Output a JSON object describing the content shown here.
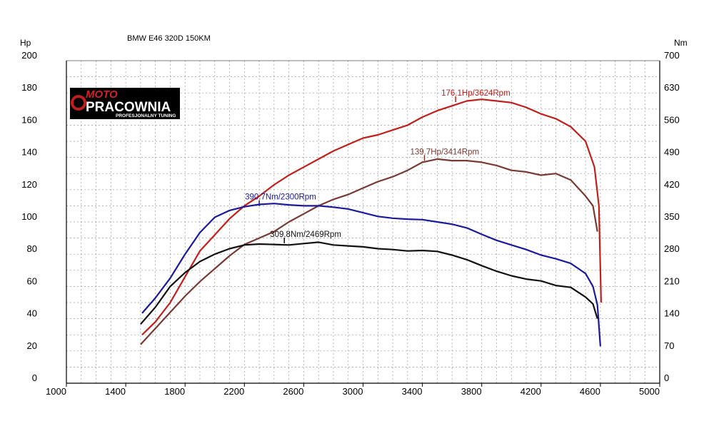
{
  "chart_data": {
    "type": "line",
    "title": "BMW E46 320D 150KM",
    "ylabel_left": "Hp",
    "ylabel_right": "Nm",
    "xlim": [
      1000,
      5000
    ],
    "ylim_left": [
      0,
      200
    ],
    "ylim_right": [
      0,
      700
    ],
    "x_ticks": [
      1000,
      1400,
      1800,
      2200,
      2600,
      3000,
      3400,
      3800,
      4200,
      4600,
      5000
    ],
    "y_ticks_left": [
      0,
      20,
      40,
      60,
      80,
      100,
      120,
      140,
      160,
      180,
      200
    ],
    "y_ticks_right": [
      0,
      70,
      140,
      210,
      280,
      350,
      420,
      490,
      560,
      630,
      700
    ],
    "grid": true,
    "logo": {
      "line1": "MOTO",
      "line2": "PRACOWNIA",
      "line3": "PROFESJONALNY TUNING"
    },
    "series": [
      {
        "color": "#c0201c",
        "axis": "left",
        "points": [
          [
            1510,
            30
          ],
          [
            1600,
            38
          ],
          [
            1700,
            50
          ],
          [
            1800,
            66
          ],
          [
            1900,
            82
          ],
          [
            2000,
            92
          ],
          [
            2100,
            102
          ],
          [
            2200,
            110
          ],
          [
            2300,
            116
          ],
          [
            2400,
            123
          ],
          [
            2500,
            129
          ],
          [
            2600,
            134
          ],
          [
            2700,
            139
          ],
          [
            2800,
            144
          ],
          [
            2900,
            148
          ],
          [
            3000,
            152
          ],
          [
            3100,
            154
          ],
          [
            3200,
            157
          ],
          [
            3300,
            160
          ],
          [
            3400,
            165
          ],
          [
            3500,
            169
          ],
          [
            3600,
            172
          ],
          [
            3700,
            175
          ],
          [
            3800,
            176
          ],
          [
            3900,
            175
          ],
          [
            4000,
            174
          ],
          [
            4100,
            171
          ],
          [
            4200,
            167
          ],
          [
            4300,
            164
          ],
          [
            4400,
            159
          ],
          [
            4500,
            150
          ],
          [
            4560,
            134
          ],
          [
            4590,
            110
          ],
          [
            4600,
            70
          ],
          [
            4605,
            50
          ]
        ],
        "annotation": {
          "text": "176.1Hp/3624Rpm",
          "x": 3624,
          "y": 176.1
        }
      },
      {
        "color": "#7a3a33",
        "axis": "left",
        "points": [
          [
            1500,
            24
          ],
          [
            1600,
            34
          ],
          [
            1700,
            44
          ],
          [
            1800,
            54
          ],
          [
            1900,
            63
          ],
          [
            2000,
            71
          ],
          [
            2100,
            79
          ],
          [
            2200,
            86
          ],
          [
            2300,
            90
          ],
          [
            2400,
            94
          ],
          [
            2500,
            100
          ],
          [
            2600,
            105
          ],
          [
            2700,
            110
          ],
          [
            2800,
            114
          ],
          [
            2900,
            117
          ],
          [
            3000,
            121
          ],
          [
            3100,
            125
          ],
          [
            3200,
            128
          ],
          [
            3300,
            132
          ],
          [
            3400,
            137
          ],
          [
            3500,
            139
          ],
          [
            3600,
            138
          ],
          [
            3700,
            138
          ],
          [
            3800,
            137
          ],
          [
            3900,
            135
          ],
          [
            4000,
            132
          ],
          [
            4100,
            131
          ],
          [
            4200,
            129
          ],
          [
            4300,
            130
          ],
          [
            4400,
            126
          ],
          [
            4500,
            116
          ],
          [
            4550,
            110
          ],
          [
            4580,
            94
          ]
        ],
        "annotation": {
          "text": "139.7Hp/3414Rpm",
          "x": 3414,
          "y": 139.7
        }
      },
      {
        "color": "#1a1a9a",
        "axis": "right",
        "points": [
          [
            1510,
            152
          ],
          [
            1600,
            185
          ],
          [
            1700,
            228
          ],
          [
            1800,
            280
          ],
          [
            1900,
            327
          ],
          [
            2000,
            360
          ],
          [
            2100,
            375
          ],
          [
            2200,
            383
          ],
          [
            2300,
            388
          ],
          [
            2400,
            390
          ],
          [
            2500,
            387
          ],
          [
            2600,
            385
          ],
          [
            2700,
            385
          ],
          [
            2800,
            382
          ],
          [
            2900,
            378
          ],
          [
            3000,
            370
          ],
          [
            3100,
            362
          ],
          [
            3200,
            358
          ],
          [
            3300,
            356
          ],
          [
            3400,
            355
          ],
          [
            3500,
            350
          ],
          [
            3600,
            345
          ],
          [
            3700,
            337
          ],
          [
            3800,
            323
          ],
          [
            3900,
            310
          ],
          [
            4000,
            300
          ],
          [
            4100,
            290
          ],
          [
            4200,
            278
          ],
          [
            4300,
            270
          ],
          [
            4400,
            260
          ],
          [
            4500,
            238
          ],
          [
            4550,
            210
          ],
          [
            4580,
            170
          ],
          [
            4600,
            80
          ]
        ],
        "annotation": {
          "text": "390.7Nm/2300Rpm",
          "x": 2300,
          "y": 390.7
        }
      },
      {
        "color": "#111111",
        "axis": "right",
        "points": [
          [
            1500,
            128
          ],
          [
            1600,
            165
          ],
          [
            1700,
            210
          ],
          [
            1800,
            240
          ],
          [
            1900,
            264
          ],
          [
            2000,
            280
          ],
          [
            2100,
            292
          ],
          [
            2200,
            300
          ],
          [
            2300,
            302
          ],
          [
            2400,
            301
          ],
          [
            2500,
            300
          ],
          [
            2600,
            303
          ],
          [
            2700,
            306
          ],
          [
            2800,
            300
          ],
          [
            2900,
            298
          ],
          [
            3000,
            296
          ],
          [
            3100,
            292
          ],
          [
            3200,
            290
          ],
          [
            3300,
            287
          ],
          [
            3400,
            288
          ],
          [
            3500,
            286
          ],
          [
            3600,
            278
          ],
          [
            3700,
            268
          ],
          [
            3800,
            255
          ],
          [
            3900,
            243
          ],
          [
            4000,
            233
          ],
          [
            4100,
            226
          ],
          [
            4200,
            222
          ],
          [
            4300,
            212
          ],
          [
            4400,
            208
          ],
          [
            4500,
            187
          ],
          [
            4550,
            172
          ],
          [
            4580,
            140
          ]
        ],
        "annotation": {
          "text": "309.8Nm/2469Rpm",
          "x": 2469,
          "y": 309.8
        }
      }
    ]
  }
}
